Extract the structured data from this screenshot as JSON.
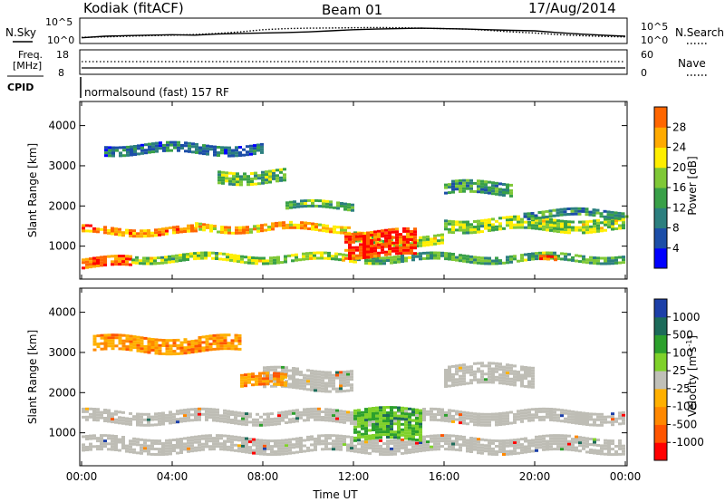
{
  "header": {
    "site": "Kodiak (fitACF)",
    "beam": "Beam 01",
    "date": "17/Aug/2014"
  },
  "colors": {
    "power": [
      "#0000ff",
      "#1c4ea8",
      "#2c7f7f",
      "#39a048",
      "#7fc837",
      "#ffee00",
      "#ffaa00",
      "#ff6600",
      "#ff0000"
    ],
    "velocity": [
      "#ff0000",
      "#ff5500",
      "#ff8800",
      "#ffb000",
      "#c0c0b8",
      "#7fd12a",
      "#2ca02c",
      "#1c6b5a",
      "#1c3fa8"
    ],
    "ground_scatter": "#bebdb5"
  },
  "noise_panel": {
    "left_label": "N.Sky",
    "right_label": "N.Search",
    "ticks_left": [
      "10^5",
      "10^0"
    ],
    "ticks_right": [
      "10^5",
      "10^0"
    ],
    "sky_series": [
      0.18,
      0.25,
      0.28,
      0.3,
      0.32,
      0.3,
      0.35,
      0.38,
      0.4,
      0.42,
      0.45,
      0.5,
      0.55,
      0.58,
      0.6,
      0.62,
      0.6,
      0.58,
      0.55,
      0.52,
      0.5,
      0.42,
      0.35,
      0.3,
      0.25
    ],
    "search_series": [
      0.2,
      0.22,
      0.25,
      0.28,
      0.3,
      0.33,
      0.38,
      0.45,
      0.55,
      0.6,
      0.62,
      0.63,
      0.64,
      0.65,
      0.64,
      0.62,
      0.6,
      0.58,
      0.52,
      0.45,
      0.4,
      0.33,
      0.28,
      0.24,
      0.22
    ]
  },
  "freq_panel": {
    "left_label_1": "Freq.",
    "left_label_2": "[MHz]",
    "right_label": "Nave",
    "ticks_left": [
      "18",
      "8"
    ],
    "ticks_right": [
      "60",
      "0"
    ]
  },
  "cpid": {
    "label": "CPID",
    "value": "normalsound (fast) 157 RF"
  },
  "x_axis": {
    "title": "Time UT",
    "ticks": [
      "00:00",
      "04:00",
      "08:00",
      "12:00",
      "16:00",
      "20:00",
      "00:00"
    ],
    "hours": [
      0,
      4,
      8,
      12,
      16,
      20,
      24
    ]
  },
  "chart_data": [
    {
      "type": "heatmap",
      "title": "",
      "xlabel": "Time UT",
      "ylabel": "Slant Range [km]",
      "x_range_hours": [
        0,
        24
      ],
      "ylim": [
        180,
        4600
      ],
      "yticks": [
        1000,
        2000,
        3000,
        4000
      ],
      "colorbar": {
        "label": "Power [dB]",
        "ticks": [
          "4",
          "8",
          "12",
          "16",
          "20",
          "24",
          "28"
        ],
        "range": [
          0,
          30
        ]
      },
      "bands": [
        {
          "t0": 0.0,
          "t1": 5.0,
          "r0": 1280,
          "r1": 1480,
          "level": 0.75
        },
        {
          "t0": 5.0,
          "t1": 12.0,
          "r0": 1380,
          "r1": 1560,
          "level": 0.7
        },
        {
          "t0": 12.0,
          "t1": 16.0,
          "r0": 1050,
          "r1": 1300,
          "level": 0.55
        },
        {
          "t0": 16.0,
          "t1": 24.0,
          "r0": 1380,
          "r1": 1700,
          "level": 0.5
        },
        {
          "t0": 0.0,
          "t1": 2.2,
          "r0": 450,
          "r1": 720,
          "level": 0.85
        },
        {
          "t0": 2.2,
          "t1": 12.0,
          "r0": 600,
          "r1": 800,
          "level": 0.5
        },
        {
          "t0": 12.0,
          "t1": 24.0,
          "r0": 600,
          "r1": 800,
          "level": 0.4
        },
        {
          "t0": 11.6,
          "t1": 14.8,
          "r0": 750,
          "r1": 1400,
          "level": 0.9
        },
        {
          "t0": 9.0,
          "t1": 12.0,
          "r0": 1900,
          "r1": 2100,
          "level": 0.4
        },
        {
          "t0": 6.0,
          "t1": 9.0,
          "r0": 2600,
          "r1": 2900,
          "level": 0.45
        },
        {
          "t0": 1.0,
          "t1": 8.0,
          "r0": 3300,
          "r1": 3550,
          "level": 0.25
        },
        {
          "t0": 16.0,
          "t1": 19.0,
          "r0": 2300,
          "r1": 2600,
          "level": 0.35
        },
        {
          "t0": 19.5,
          "t1": 24.0,
          "r0": 1700,
          "r1": 1900,
          "level": 0.35
        },
        {
          "t0": 20.2,
          "t1": 21.0,
          "r0": 650,
          "r1": 720,
          "level": 0.9
        }
      ]
    },
    {
      "type": "heatmap",
      "title": "",
      "xlabel": "Time UT",
      "ylabel": "Slant Range [km]",
      "x_range_hours": [
        0,
        24
      ],
      "ylim": [
        180,
        4600
      ],
      "yticks": [
        1000,
        2000,
        3000,
        4000
      ],
      "colorbar": {
        "label": "Velocity [m s-1]",
        "label_main": "Velocity  [m s",
        "label_sup": "-1",
        "label_end": "]",
        "ticks": [
          "-1000",
          "-500",
          "-100",
          "-25",
          "25",
          "100",
          "500",
          "1000"
        ],
        "range": [
          -1000,
          1000
        ]
      },
      "bands": [
        {
          "t0": 0.0,
          "t1": 24.0,
          "r0": 1250,
          "r1": 1560,
          "value": "ground"
        },
        {
          "t0": 0.0,
          "t1": 24.0,
          "r0": 550,
          "r1": 900,
          "value": "ground"
        },
        {
          "t0": 8.0,
          "t1": 12.0,
          "r0": 2100,
          "r1": 2600,
          "value": "ground"
        },
        {
          "t0": 16.0,
          "t1": 20.0,
          "r0": 2200,
          "r1": 2700,
          "value": "ground"
        },
        {
          "t0": 12.0,
          "t1": 15.0,
          "r0": 850,
          "r1": 1600,
          "value": 150
        },
        {
          "t0": 7.0,
          "t1": 9.0,
          "r0": 2150,
          "r1": 2450,
          "value": -200
        },
        {
          "t0": 0.5,
          "t1": 7.0,
          "r0": 3000,
          "r1": 3400,
          "value": -80
        }
      ]
    }
  ]
}
